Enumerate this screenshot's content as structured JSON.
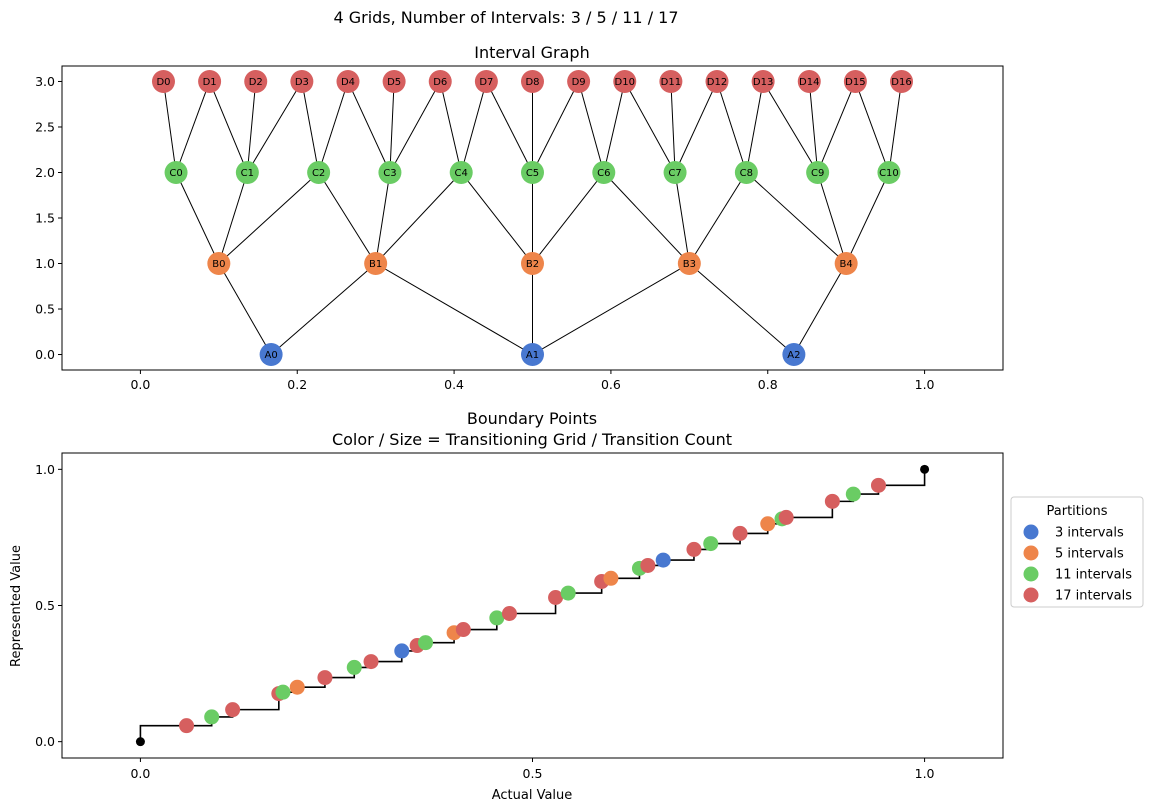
{
  "suptitle": "4 Grids, Number of Intervals: 3 / 5 / 11 / 17",
  "colors": {
    "grid3": "#4878d0",
    "grid5": "#ee854a",
    "grid11": "#6acc64",
    "grid17": "#d65f5f",
    "edge": "#000000",
    "endpoint": "#000000"
  },
  "chart_data": [
    {
      "type": "network",
      "title": "Interval Graph",
      "xlim": [
        -0.1,
        1.1
      ],
      "ylim": [
        -0.17,
        3.17
      ],
      "xticks": [
        "0.0",
        "0.2",
        "0.4",
        "0.6",
        "0.8",
        "1.0"
      ],
      "yticks": [
        "0.0",
        "0.5",
        "1.0",
        "1.5",
        "2.0",
        "2.5",
        "3.0"
      ],
      "levels": [
        {
          "y": 0,
          "color_key": "grid3",
          "names": [
            "A0",
            "A1",
            "A2"
          ]
        },
        {
          "y": 1,
          "color_key": "grid5",
          "names": [
            "B0",
            "B1",
            "B2",
            "B3",
            "B4"
          ]
        },
        {
          "y": 2,
          "color_key": "grid11",
          "names": [
            "C0",
            "C1",
            "C2",
            "C3",
            "C4",
            "C5",
            "C6",
            "C7",
            "C8",
            "C9",
            "C10"
          ]
        },
        {
          "y": 3,
          "color_key": "grid17",
          "names": [
            "D0",
            "D1",
            "D2",
            "D3",
            "D4",
            "D5",
            "D6",
            "D7",
            "D8",
            "D9",
            "D10",
            "D11",
            "D12",
            "D13",
            "D14",
            "D15",
            "D16"
          ]
        }
      ]
    },
    {
      "type": "scatter",
      "title": "Boundary Points",
      "subtitle": "Color / Size = Transitioning Grid / Transition Count",
      "xlabel": "Actual Value",
      "ylabel": "Represented Value",
      "xlim": [
        -0.1,
        1.1
      ],
      "ylim": [
        -0.06,
        1.06
      ],
      "xticks": [
        "0.0",
        "0.5",
        "1.0"
      ],
      "yticks": [
        "0.0",
        "0.5",
        "1.0"
      ],
      "legend": {
        "title": "Partitions",
        "placement": "right",
        "entries": [
          {
            "label": "3 intervals",
            "color_key": "grid3"
          },
          {
            "label": "5 intervals",
            "color_key": "grid5"
          },
          {
            "label": "11 intervals",
            "color_key": "grid11"
          },
          {
            "label": "17 intervals",
            "color_key": "grid17"
          }
        ]
      },
      "endpoints": [
        [
          0,
          0
        ],
        [
          1,
          1
        ]
      ],
      "series": [
        {
          "color_key": "grid3",
          "x": [
            0.3333,
            0.6667
          ],
          "y": [
            0.3333,
            0.6667
          ]
        },
        {
          "color_key": "grid5",
          "x": [
            0.2,
            0.4,
            0.6,
            0.8
          ],
          "y": [
            0.2,
            0.4,
            0.6,
            0.8
          ]
        },
        {
          "color_key": "grid11",
          "x": [
            0.0909,
            0.1818,
            0.2727,
            0.3636,
            0.4545,
            0.5455,
            0.6364,
            0.7273,
            0.8182,
            0.9091
          ],
          "y": [
            0.0909,
            0.1818,
            0.2727,
            0.3636,
            0.4545,
            0.5455,
            0.6364,
            0.7273,
            0.8182,
            0.9091
          ]
        },
        {
          "color_key": "grid17",
          "x": [
            0.0588,
            0.1176,
            0.1765,
            0.2353,
            0.2941,
            0.3529,
            0.4118,
            0.4706,
            0.5294,
            0.5882,
            0.6471,
            0.7059,
            0.7647,
            0.8235,
            0.8824,
            0.9412
          ],
          "y": [
            0.0588,
            0.1176,
            0.1765,
            0.2353,
            0.2941,
            0.3529,
            0.4118,
            0.4706,
            0.5294,
            0.5882,
            0.6471,
            0.7059,
            0.7647,
            0.8235,
            0.8824,
            0.9412
          ]
        }
      ]
    }
  ]
}
